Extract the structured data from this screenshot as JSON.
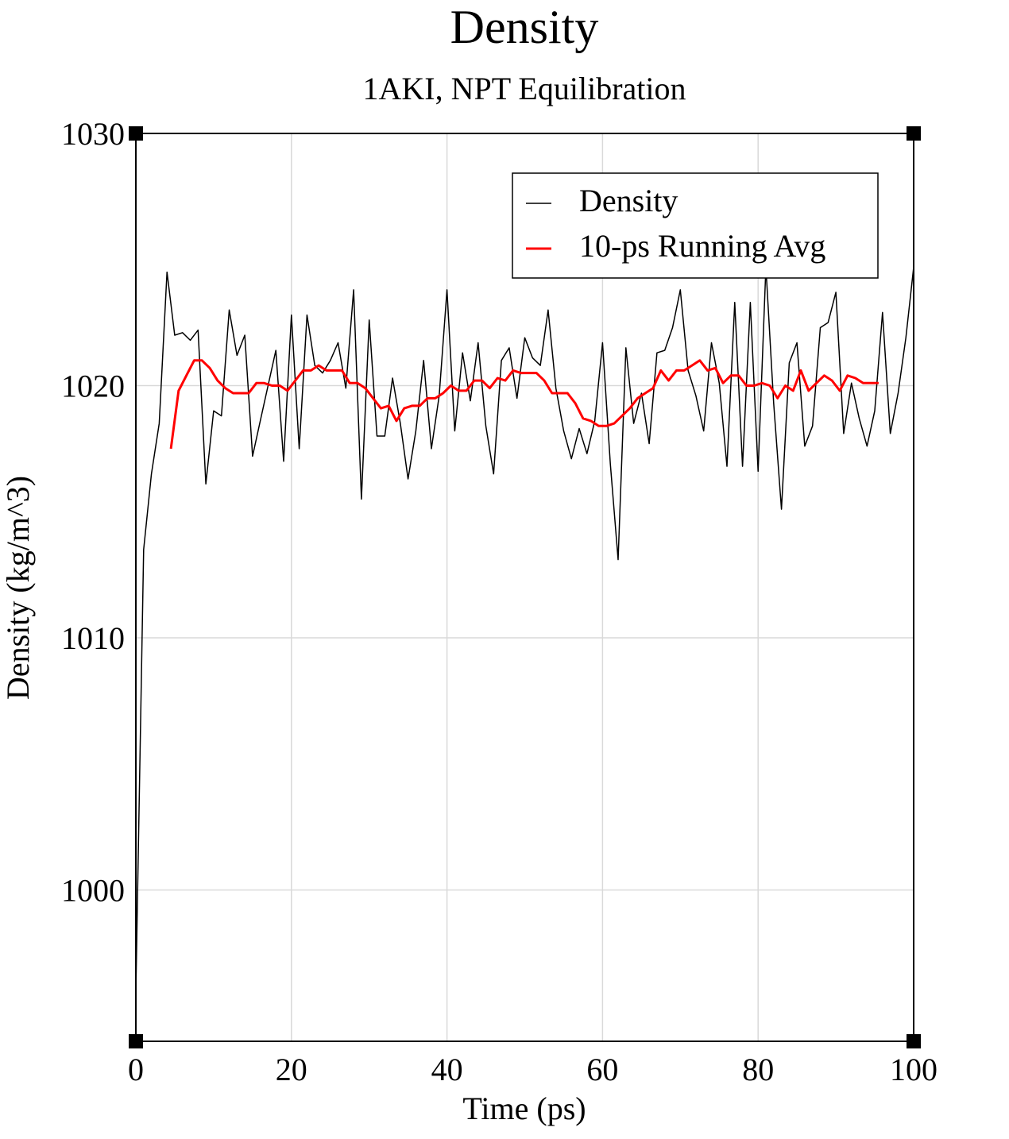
{
  "chart_data": {
    "type": "line",
    "title": "Density",
    "subtitle": "1AKI, NPT Equilibration",
    "xlabel": "Time (ps)",
    "ylabel": "Density (kg/m^3)",
    "xlim": [
      0,
      100
    ],
    "ylim": [
      994,
      1030
    ],
    "xticks": [
      0,
      20,
      40,
      60,
      80,
      100
    ],
    "yticks": [
      1000,
      1010,
      1020,
      1030
    ],
    "xtick_labels": [
      "0",
      "20",
      "40",
      "60",
      "80",
      "100"
    ],
    "ytick_labels": [
      "1000",
      "1010",
      "1020",
      "1030"
    ],
    "grid": true,
    "legend_position": "top-right",
    "series": [
      {
        "name": "Density",
        "color": "#000000",
        "x": [
          0,
          1,
          2,
          3,
          4,
          5,
          6,
          7,
          8,
          9,
          10,
          11,
          12,
          13,
          14,
          15,
          16,
          17,
          18,
          19,
          20,
          21,
          22,
          23,
          24,
          25,
          26,
          27,
          28,
          29,
          30,
          31,
          32,
          33,
          34,
          35,
          36,
          37,
          38,
          39,
          40,
          41,
          42,
          43,
          44,
          45,
          46,
          47,
          48,
          49,
          50,
          51,
          52,
          53,
          54,
          55,
          56,
          57,
          58,
          59,
          60,
          61,
          62,
          63,
          64,
          65,
          66,
          67,
          68,
          69,
          70,
          71,
          72,
          73,
          74,
          75,
          76,
          77,
          78,
          79,
          80,
          81,
          82,
          83,
          84,
          85,
          86,
          87,
          88,
          89,
          90,
          91,
          92,
          93,
          94,
          95,
          96,
          97,
          98,
          99,
          100
        ],
        "y": [
          996,
          1013.5,
          1016.5,
          1018.5,
          1024.5,
          1022,
          1022.1,
          1021.8,
          1022.2,
          1016.1,
          1019,
          1018.8,
          1023,
          1021.2,
          1022,
          1017.2,
          1018.6,
          1020,
          1021.4,
          1017,
          1022.8,
          1017.5,
          1022.8,
          1020.8,
          1020.5,
          1021,
          1021.7,
          1019.9,
          1023.8,
          1015.5,
          1022.6,
          1018,
          1018,
          1020.3,
          1018.5,
          1016.3,
          1018.2,
          1021,
          1017.5,
          1019.6,
          1023.8,
          1018.2,
          1021.3,
          1019.4,
          1021.7,
          1018.4,
          1016.5,
          1021,
          1021.5,
          1019.5,
          1021.9,
          1021.1,
          1020.8,
          1023,
          1019.9,
          1018.2,
          1017.1,
          1018.3,
          1017.3,
          1018.6,
          1021.7,
          1016.9,
          1013.1,
          1021.5,
          1018.5,
          1019.7,
          1017.7,
          1021.3,
          1021.4,
          1022.3,
          1023.8,
          1020.6,
          1019.6,
          1018.2,
          1021.7,
          1020.1,
          1016.8,
          1023.3,
          1016.8,
          1023.3,
          1016.6,
          1024.7,
          1019.3,
          1015.1,
          1020.9,
          1021.7,
          1017.6,
          1018.4,
          1022.3,
          1022.5,
          1023.7,
          1018.1,
          1020.1,
          1018.7,
          1017.6,
          1019,
          1022.9,
          1018.1,
          1019.7,
          1021.9,
          1024.7
        ]
      },
      {
        "name": "10-ps Running Avg",
        "color": "#ff0000",
        "x": [
          4.5,
          5.5,
          6.5,
          7.5,
          8.5,
          9.5,
          10.5,
          11.5,
          12.5,
          13.5,
          14.5,
          15.5,
          16.5,
          17.5,
          18.5,
          19.5,
          20.5,
          21.5,
          22.5,
          23.5,
          24.5,
          25.5,
          26.5,
          27.5,
          28.5,
          29.5,
          30.5,
          31.5,
          32.5,
          33.5,
          34.5,
          35.5,
          36.5,
          37.5,
          38.5,
          39.5,
          40.5,
          41.5,
          42.5,
          43.5,
          44.5,
          45.5,
          46.5,
          47.5,
          48.5,
          49.5,
          50.5,
          51.5,
          52.5,
          53.5,
          54.5,
          55.5,
          56.5,
          57.5,
          58.5,
          59.5,
          60.5,
          61.5,
          62.5,
          63.5,
          64.5,
          65.5,
          66.5,
          67.5,
          68.5,
          69.5,
          70.5,
          71.5,
          72.5,
          73.5,
          74.5,
          75.5,
          76.5,
          77.5,
          78.5,
          79.5,
          80.5,
          81.5,
          82.5,
          83.5,
          84.5,
          85.5,
          86.5,
          87.5,
          88.5,
          89.5,
          90.5,
          91.5,
          92.5,
          93.5,
          94.5,
          95.5
        ],
        "y": [
          1017.5,
          1019.8,
          1020.4,
          1021,
          1021,
          1020.7,
          1020.2,
          1019.9,
          1019.7,
          1019.7,
          1019.7,
          1020.1,
          1020.1,
          1020,
          1020,
          1019.8,
          1020.2,
          1020.6,
          1020.6,
          1020.8,
          1020.6,
          1020.6,
          1020.6,
          1020.1,
          1020.1,
          1019.9,
          1019.5,
          1019.1,
          1019.2,
          1018.6,
          1019.1,
          1019.2,
          1019.2,
          1019.5,
          1019.5,
          1019.7,
          1020,
          1019.8,
          1019.8,
          1020.2,
          1020.2,
          1019.9,
          1020.3,
          1020.2,
          1020.6,
          1020.5,
          1020.5,
          1020.5,
          1020.2,
          1019.7,
          1019.7,
          1019.7,
          1019.3,
          1018.7,
          1018.6,
          1018.4,
          1018.4,
          1018.5,
          1018.8,
          1019.1,
          1019.5,
          1019.7,
          1019.9,
          1020.6,
          1020.2,
          1020.6,
          1020.6,
          1020.8,
          1021,
          1020.6,
          1020.7,
          1020.1,
          1020.4,
          1020.4,
          1020,
          1020,
          1020.1,
          1020,
          1019.5,
          1020,
          1019.8,
          1020.6,
          1019.8,
          1020.1,
          1020.4,
          1020.2,
          1019.8,
          1020.4,
          1020.3,
          1020.1,
          1020.1,
          1020.1
        ]
      }
    ]
  }
}
